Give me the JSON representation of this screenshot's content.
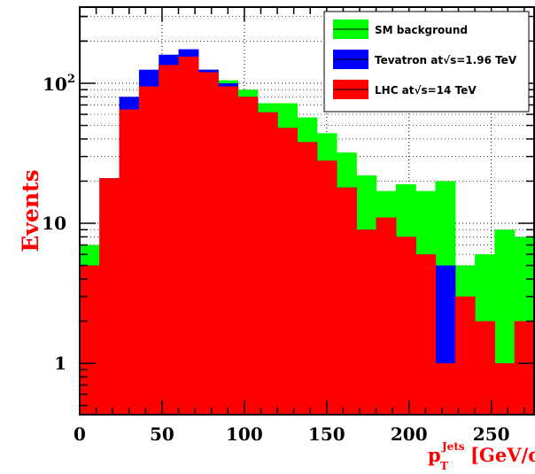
{
  "chart_data": {
    "type": "bar",
    "subtype": "stepped-histogram-overlay",
    "x_bin_edges": [
      0,
      12,
      24,
      36,
      48,
      60,
      72,
      84,
      96,
      108,
      120,
      132,
      144,
      156,
      168,
      180,
      192,
      204,
      216,
      228,
      240,
      252,
      264,
      276
    ],
    "series": [
      {
        "name": "SM background",
        "color": "#00ff00",
        "values": [
          7,
          21,
          65,
          100,
          135,
          150,
          125,
          105,
          90,
          72,
          72,
          57,
          44,
          32,
          22,
          17,
          19,
          17,
          20,
          5,
          6,
          9,
          8
        ]
      },
      {
        "name": "Tevatron at√s=1.96 TeV",
        "color": "#0000ff",
        "values": [
          5,
          21,
          80,
          125,
          160,
          175,
          125,
          100,
          80,
          62,
          48,
          38,
          28,
          18,
          9,
          11,
          8,
          6,
          5,
          1,
          1,
          1,
          1
        ]
      },
      {
        "name": "LHC at√s=14 TeV",
        "color": "#ff0000",
        "values": [
          5,
          21,
          65,
          95,
          135,
          155,
          120,
          95,
          80,
          62,
          48,
          38,
          28,
          18,
          9,
          11,
          8,
          6,
          1,
          3,
          2,
          1,
          2
        ]
      }
    ],
    "xlim": [
      0,
      276
    ],
    "ylim": [
      0.43,
      350
    ],
    "log_y": true,
    "grid": true,
    "x_ticks": [
      "0",
      "50",
      "100",
      "150",
      "200",
      "250"
    ],
    "y_ticks": [
      "1",
      "10",
      "10^2"
    ],
    "ylabel": "Events",
    "xlabel_main": "p",
    "xlabel_sub": "T",
    "xlabel_sup": "Jets",
    "xlabel_unit": "[GeV/c]",
    "legend_position": "top-right"
  }
}
